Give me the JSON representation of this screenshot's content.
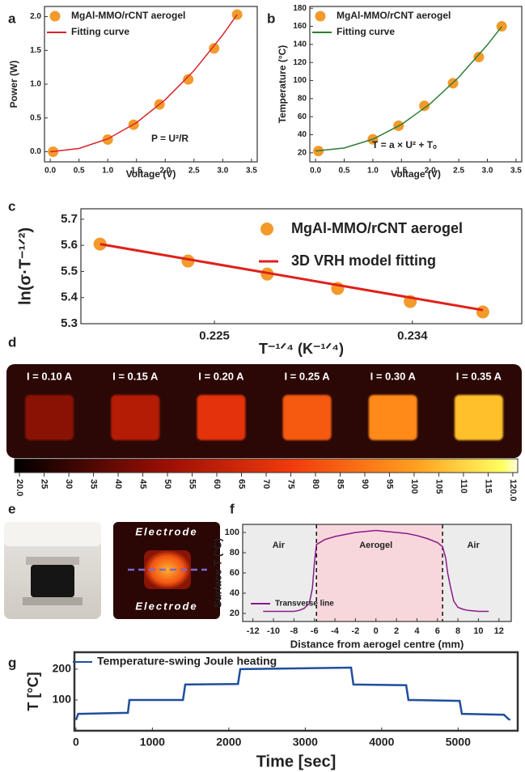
{
  "chart_data": [
    {
      "type": "scatter",
      "label": "a",
      "xlabel": "Voltage (V)",
      "ylabel": "Power (W)",
      "annotation": "P = U²/R",
      "xlim": [
        -0.1,
        3.6
      ],
      "ylim": [
        -0.15,
        2.15
      ],
      "xticks": [
        {
          "value": 0,
          "label": "0.0"
        },
        0.5,
        {
          "value": 1,
          "label": "1.0"
        },
        1.5,
        {
          "value": 2,
          "label": "2.0"
        },
        2.5,
        {
          "value": 3,
          "label": "3.0"
        },
        3.5
      ],
      "yticks": [
        {
          "value": 0,
          "label": "0.0"
        },
        0.5,
        {
          "value": 1,
          "label": "1.0"
        },
        1.5,
        {
          "value": 2,
          "label": "2.0"
        }
      ],
      "legend": "upper left",
      "series": [
        {
          "name": "MgAl-MMO/rCNT aerogel",
          "color": "#f39a2b",
          "kind": "marker",
          "x": [
            0.05,
            1.0,
            1.45,
            1.9,
            2.4,
            2.85,
            3.25
          ],
          "values": [
            0.0,
            0.18,
            0.4,
            0.7,
            1.07,
            1.53,
            2.03
          ]
        },
        {
          "name": "Fitting curve",
          "color": "#d8232a",
          "kind": "line",
          "x": [
            0,
            0.5,
            1,
            1.5,
            2,
            2.5,
            3,
            3.25
          ],
          "values": [
            0,
            0.048,
            0.19,
            0.43,
            0.77,
            1.2,
            1.73,
            2.03
          ]
        }
      ]
    },
    {
      "type": "scatter",
      "label": "b",
      "xlabel": "Voltage (V)",
      "ylabel": "Temperature (°C)",
      "annotation": "T = a × U² + Tₒ",
      "xlim": [
        -0.1,
        3.6
      ],
      "ylim": [
        10,
        182
      ],
      "xticks": [
        {
          "value": 0,
          "label": "0.0"
        },
        0.5,
        {
          "value": 1,
          "label": "1.0"
        },
        1.5,
        {
          "value": 2,
          "label": "2.0"
        },
        2.5,
        {
          "value": 3,
          "label": "3.0"
        },
        3.5
      ],
      "yticks": [
        20,
        40,
        60,
        80,
        100,
        120,
        140,
        160,
        180
      ],
      "legend": "upper left",
      "series": [
        {
          "name": "MgAl-MMO/rCNT aerogel",
          "color": "#f39a2b",
          "kind": "marker",
          "x": [
            0.05,
            1.0,
            1.45,
            1.9,
            2.4,
            2.85,
            3.25
          ],
          "values": [
            22,
            35,
            50,
            72,
            97,
            126,
            160
          ]
        },
        {
          "name": "Fitting curve",
          "color": "#2e7d32",
          "kind": "line",
          "x": [
            0,
            0.5,
            1,
            1.5,
            2,
            2.5,
            3,
            3.25
          ],
          "values": [
            22,
            25.3,
            35.1,
            51.4,
            74.2,
            103.6,
            139.5,
            159.8
          ]
        }
      ]
    },
    {
      "type": "scatter",
      "label": "c",
      "xlabel": "T⁻¹ᐟ⁴ (K⁻¹ᐟ⁴)",
      "ylabel": "ln(σ·T⁻¹ᐟ²)",
      "xlim": [
        0.21893,
        0.23897
      ],
      "ylim": [
        5.3,
        5.74
      ],
      "xticks": [
        0.225,
        0.234
      ],
      "yticks": [
        5.3,
        5.4,
        5.5,
        5.6,
        5.7
      ],
      "legend": "upper right",
      "series": [
        {
          "name": "MgAl-MMO/rCNT aerogel",
          "color": "#f39a2b",
          "kind": "marker",
          "x": [
            0.2198,
            0.2238,
            0.2274,
            0.2306,
            0.2339,
            0.2372
          ],
          "values": [
            5.605,
            5.54,
            5.49,
            5.435,
            5.385,
            5.345
          ]
        },
        {
          "name": "3D VRH model fitting",
          "color": "#e0201b",
          "kind": "line",
          "x": [
            0.2198,
            0.2372
          ],
          "values": [
            5.605,
            5.352
          ]
        }
      ]
    },
    {
      "type": "image",
      "label": "d",
      "panels": [
        "I = 0.10 A",
        "I = 0.15 A",
        "I = 0.20 A",
        "I = 0.25 A",
        "I = 0.30 A",
        "I = 0.35 A"
      ],
      "panel_colors": [
        "#8a1205",
        "#b51c06",
        "#e4330a",
        "#f55a10",
        "#ff8a1a",
        "#ffc02a"
      ],
      "colorbar_lim": [
        19,
        121
      ],
      "colorbar_ticks": [
        {
          "value": 20,
          "label": "20.0"
        },
        25,
        30,
        35,
        40,
        45,
        50,
        55,
        60,
        65,
        70,
        75,
        80,
        85,
        90,
        95,
        100,
        105,
        110,
        115,
        {
          "value": 120,
          "label": "120.0"
        }
      ]
    },
    {
      "type": "image",
      "label": "e",
      "texts": [
        "Electrode",
        "Electrode"
      ]
    },
    {
      "type": "line",
      "label": "f",
      "xlabel": "Distance from aerogel centre (mm)",
      "ylabel": "Surface T (°C)",
      "annotations": [
        "Air",
        "Aerogel",
        "Air"
      ],
      "shaded_span": [
        -5.8,
        6.5
      ],
      "span_color": "#f8d7dc",
      "outer_color": "#ececec",
      "xlim": [
        -13,
        13.2
      ],
      "ylim": [
        12,
        108
      ],
      "xticks": [
        -12,
        -10,
        -8,
        -6,
        -4,
        -2,
        0,
        2,
        4,
        6,
        8,
        10,
        12
      ],
      "yticks": [
        20,
        40,
        60,
        80,
        100
      ],
      "legend": "lower left",
      "series": [
        {
          "name": "Transverse line",
          "color": "#8b1a8b",
          "kind": "line",
          "x": [
            -11,
            -10,
            -9,
            -8,
            -7.5,
            -7,
            -6.5,
            -6.2,
            -6,
            -5.8,
            -5,
            -4,
            -3,
            -2,
            -1,
            0,
            1,
            2,
            3,
            4,
            5,
            6,
            6.5,
            6.8,
            7,
            7.3,
            7.6,
            8,
            8.5,
            9,
            10,
            11
          ],
          "values": [
            22,
            22,
            22,
            22,
            23,
            25,
            30,
            45,
            70,
            88,
            93,
            96,
            98,
            100,
            101,
            102,
            101,
            100,
            99,
            97,
            94,
            90,
            86,
            75,
            60,
            45,
            32,
            26,
            24,
            23,
            22,
            22
          ]
        }
      ]
    },
    {
      "type": "line",
      "label": "g",
      "xlabel": "Time [sec]",
      "ylabel": "T [°C]",
      "xlim": [
        -20,
        5780
      ],
      "ylim": [
        0,
        255
      ],
      "xticks": [
        0,
        1000,
        2000,
        3000,
        4000,
        5000
      ],
      "yticks": [
        100,
        200
      ],
      "legend": "upper left",
      "series": [
        {
          "name": "Temperature-swing Joule heating",
          "color": "#1f4e9c",
          "kind": "line",
          "x": [
            0,
            30,
            60,
            680,
            700,
            1400,
            1430,
            2120,
            2150,
            3600,
            3630,
            4320,
            4350,
            5020,
            5050,
            5600,
            5650,
            5680
          ],
          "values": [
            35,
            55,
            55,
            58,
            100,
            100,
            150,
            152,
            200,
            205,
            150,
            148,
            100,
            97,
            55,
            52,
            40,
            35
          ]
        }
      ]
    }
  ]
}
